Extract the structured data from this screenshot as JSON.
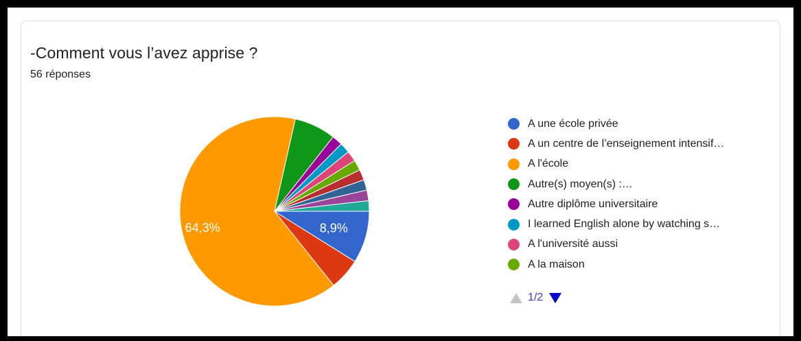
{
  "card": {
    "title": "-Comment vous l’avez apprise ?",
    "responses": "56 réponses"
  },
  "pager": {
    "text": "1/2",
    "prev_icon": "triangle-up",
    "next_icon": "triangle-down"
  },
  "chart_data": {
    "type": "pie",
    "total_responses": 56,
    "slices": [
      {
        "label": "A une école privée",
        "value": 8.9,
        "color": "#3366cc",
        "data_label": "8,9%"
      },
      {
        "label": "A un centre de l’enseignement intensif…",
        "value": 5.4,
        "color": "#dc3912",
        "data_label": ""
      },
      {
        "label": "A l'école",
        "value": 64.3,
        "color": "#ff9900",
        "data_label": "64,3%"
      },
      {
        "label": "Autre(s) moyen(s) :…",
        "value": 7.1,
        "color": "#109618",
        "data_label": ""
      },
      {
        "label": "Autre diplôme universitaire",
        "value": 1.8,
        "color": "#990099",
        "data_label": ""
      },
      {
        "label": "I learned English alone by watching s…",
        "value": 1.8,
        "color": "#0099c6",
        "data_label": ""
      },
      {
        "label": "A l'université aussi",
        "value": 1.8,
        "color": "#dd4477",
        "data_label": ""
      },
      {
        "label": "A la maison",
        "value": 1.8,
        "color": "#66aa00",
        "data_label": ""
      },
      {
        "label": "",
        "value": 1.8,
        "color": "#b82e2e",
        "data_label": ""
      },
      {
        "label": "",
        "value": 1.8,
        "color": "#316395",
        "data_label": ""
      },
      {
        "label": "",
        "value": 1.8,
        "color": "#994499",
        "data_label": ""
      },
      {
        "label": "",
        "value": 1.8,
        "color": "#22aa99",
        "data_label": ""
      }
    ],
    "legend_visible_count": 8,
    "legend_placement": "right"
  }
}
